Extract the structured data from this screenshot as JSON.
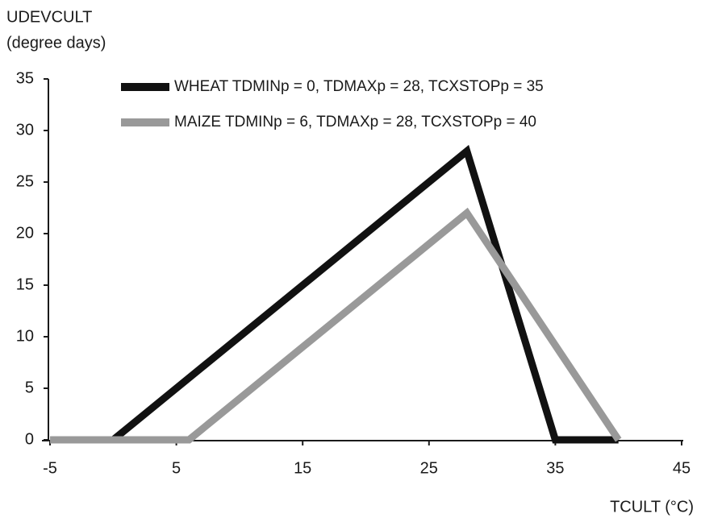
{
  "chart_data": {
    "type": "line",
    "y_label_lines": [
      "UDEVCULT",
      "(degree days)"
    ],
    "x_label": "TCULT (°C)",
    "series": [
      {
        "name": "WHEAT TDMINp = 0, TDMAXp = 28, TCXSTOPp = 35",
        "color": "#111111",
        "x": [
          -5,
          0,
          28,
          35,
          40
        ],
        "values": [
          0,
          0,
          28,
          0,
          0
        ]
      },
      {
        "name": "MAIZE TDMINp = 6, TDMAXp = 28, TCXSTOPp = 40",
        "color": "#999999",
        "x": [
          -5,
          6,
          28,
          40
        ],
        "values": [
          0,
          0,
          22,
          0
        ]
      }
    ],
    "xlim": [
      -5,
      45
    ],
    "xticks": [
      -5,
      5,
      15,
      25,
      35,
      45
    ],
    "ylim": [
      0,
      35
    ],
    "yticks": [
      0,
      5,
      10,
      15,
      20,
      25,
      30,
      35
    ],
    "grid": false
  }
}
